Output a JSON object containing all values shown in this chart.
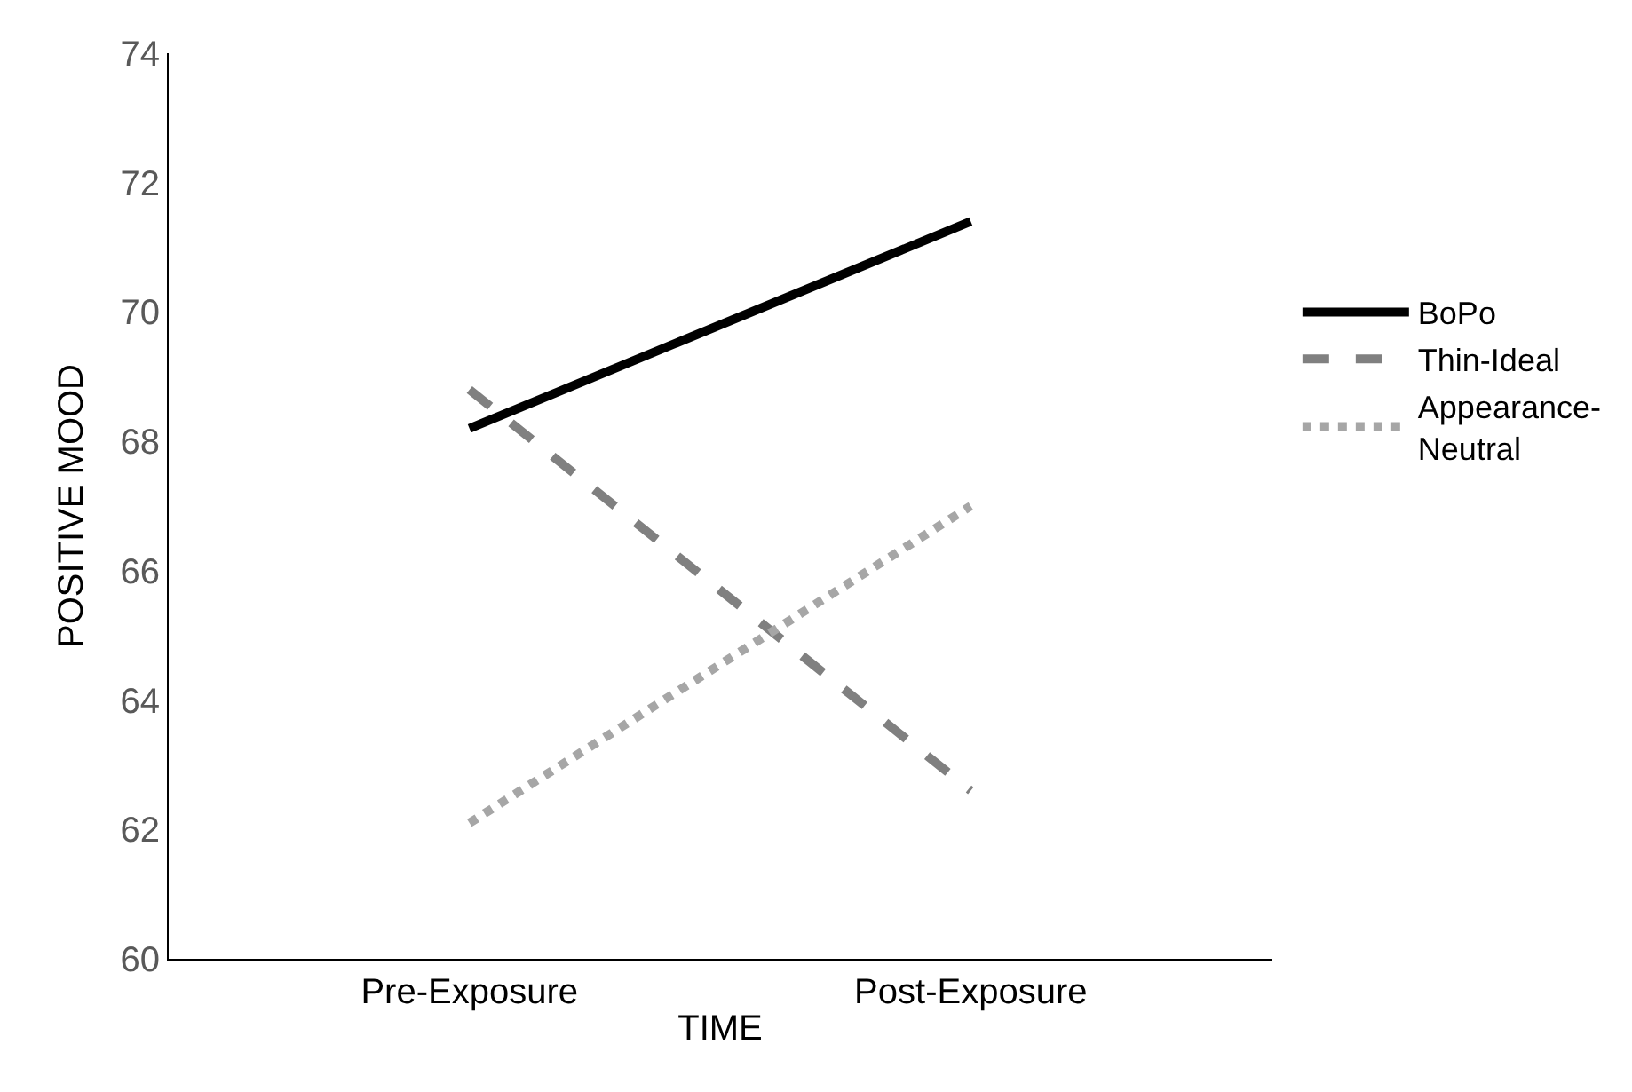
{
  "chart_data": {
    "type": "line",
    "xlabel": "TIME",
    "ylabel": "POSITIVE MOOD",
    "categories": [
      "Pre-Exposure",
      "Post-Exposure"
    ],
    "series": [
      {
        "name": "BoPo",
        "color": "#000000",
        "line_style": "solid",
        "values": [
          68.2,
          71.4
        ]
      },
      {
        "name": "Thin-Ideal",
        "color": "#808080",
        "line_style": "dashed",
        "values": [
          68.8,
          62.6
        ]
      },
      {
        "name": "Appearance-\nNeutral",
        "color": "#a6a6a6",
        "line_style": "dotted",
        "values": [
          62.1,
          67.0
        ]
      }
    ],
    "ylim": [
      60,
      74
    ],
    "yticks": [
      60,
      62,
      64,
      66,
      68,
      70,
      72,
      74
    ],
    "legend": "right",
    "marker": "none"
  }
}
